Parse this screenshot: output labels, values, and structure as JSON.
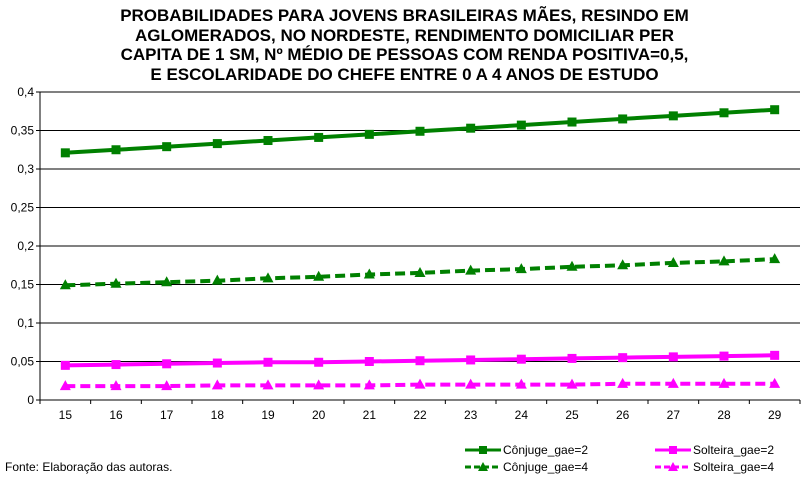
{
  "chart_data": {
    "type": "line",
    "title": "PROBABILIDADES PARA JOVENS BRASILEIRAS MÃES, RESINDO EM\nAGLOMERADOS, NO NORDESTE, RENDIMENTO DOMICILIAR PER\nCAPITA DE 1 SM,  Nº MÉDIO DE PESSOAS COM RENDA POSITIVA=0,5,\nE ESCOLARIDADE DO CHEFE ENTRE 0 A 4 ANOS DE ESTUDO",
    "x": [
      15,
      16,
      17,
      18,
      19,
      20,
      21,
      22,
      23,
      24,
      25,
      26,
      27,
      28,
      29
    ],
    "xlabel": "",
    "ylabel": "",
    "ylim": [
      0,
      0.4
    ],
    "yticks": [
      "0",
      "0,05",
      "0,1",
      "0,15",
      "0,2",
      "0,25",
      "0,3",
      "0,35",
      "0,4"
    ],
    "grid": "horizontal",
    "legend_position": "bottom-right",
    "series": [
      {
        "name": "Cônjuge_gae=2",
        "color": "#008000",
        "dashed": false,
        "marker": "square",
        "values": [
          0.321,
          0.325,
          0.329,
          0.333,
          0.337,
          0.341,
          0.345,
          0.349,
          0.353,
          0.357,
          0.361,
          0.365,
          0.369,
          0.373,
          0.377
        ]
      },
      {
        "name": "Cônjuge_gae=4",
        "color": "#008000",
        "dashed": true,
        "marker": "triangle",
        "values": [
          0.149,
          0.151,
          0.153,
          0.155,
          0.158,
          0.16,
          0.163,
          0.165,
          0.168,
          0.17,
          0.173,
          0.175,
          0.178,
          0.18,
          0.183
        ]
      },
      {
        "name": "Solteira_gae=2",
        "color": "#ff00ff",
        "dashed": false,
        "marker": "square",
        "values": [
          0.045,
          0.046,
          0.047,
          0.048,
          0.049,
          0.049,
          0.05,
          0.051,
          0.052,
          0.053,
          0.054,
          0.055,
          0.056,
          0.057,
          0.058
        ]
      },
      {
        "name": "Solteira_gae=4",
        "color": "#ff00ff",
        "dashed": true,
        "marker": "triangle",
        "values": [
          0.018,
          0.018,
          0.018,
          0.019,
          0.019,
          0.019,
          0.019,
          0.02,
          0.02,
          0.02,
          0.02,
          0.021,
          0.021,
          0.021,
          0.021
        ]
      }
    ]
  },
  "footer": {
    "source": "Fonte: Elaboração das autoras."
  }
}
